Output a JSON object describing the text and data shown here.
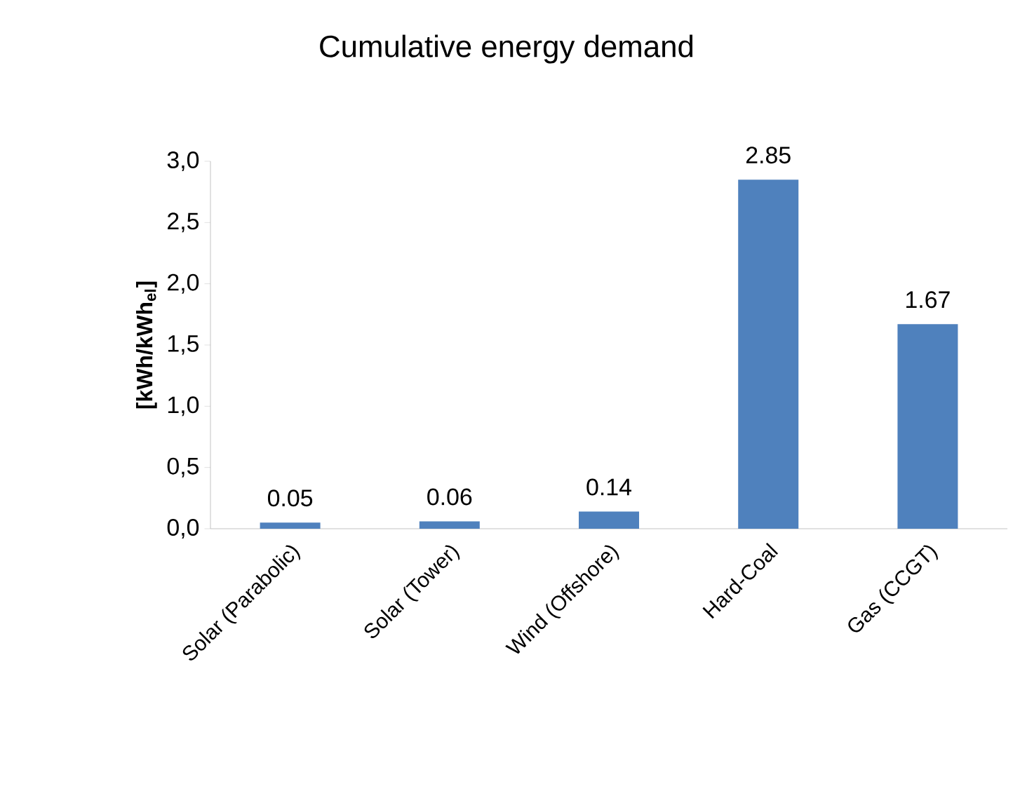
{
  "chart_data": {
    "type": "bar",
    "title": "Cumulative energy demand",
    "ylabel": "[kWh/kWh$_{el}$]",
    "categories": [
      "Solar (Parabolic)",
      "Solar (Tower)",
      "Wind (Offshore)",
      "Hard-Coal",
      "Gas (CCGT)"
    ],
    "values": [
      0.05,
      0.06,
      0.14,
      2.85,
      1.67
    ],
    "value_labels": [
      "0.05",
      "0.06",
      "0.14",
      "2.85",
      "1.67"
    ],
    "color": "#4f81bd",
    "ylim": [
      0,
      3.0
    ],
    "yticks": [
      {
        "value": 0,
        "label": "0,0"
      },
      {
        "value": 0.5,
        "label": "0,5"
      },
      {
        "value": 1,
        "label": "1,0"
      },
      {
        "value": 1.5,
        "label": "1,5"
      },
      {
        "value": 2,
        "label": "2,0"
      },
      {
        "value": 2.5,
        "label": "2,5"
      },
      {
        "value": 3,
        "label": "3,0"
      }
    ],
    "grid": false
  }
}
